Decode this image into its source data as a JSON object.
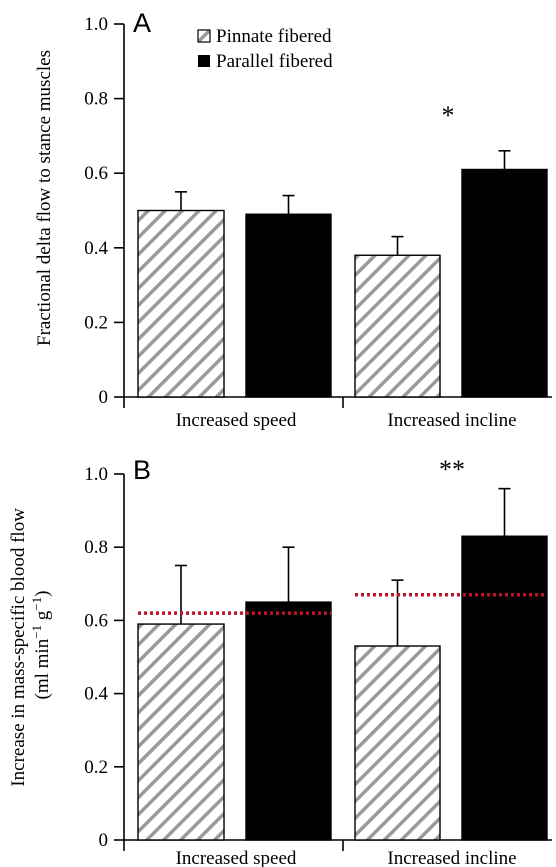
{
  "chart_data": [
    {
      "type": "bar",
      "panel_label": "A",
      "ylabel": "Fractional delta flow to stance muscles",
      "ylabel_lines": [
        "Fractional delta flow to stance muscles"
      ],
      "ylim": [
        0,
        1.0
      ],
      "yticks": [
        0,
        0.2,
        0.4,
        0.6,
        0.8,
        1.0
      ],
      "ytick_labels": [
        "0",
        "0.2",
        "0.4",
        "0.6",
        "0.8",
        "1.0"
      ],
      "categories": [
        "Increased speed",
        "Increased incline"
      ],
      "series": [
        {
          "name": "Pinnate fibered",
          "pattern": "hatched",
          "values": [
            0.5,
            0.38
          ],
          "errors": [
            0.05,
            0.05
          ]
        },
        {
          "name": "Parallel fibered",
          "pattern": "solid",
          "values": [
            0.49,
            0.61
          ],
          "errors": [
            0.05,
            0.05
          ]
        }
      ],
      "legend": {
        "position": "top-center",
        "items": [
          {
            "label": "Pinnate fibered",
            "pattern": "hatched"
          },
          {
            "label": "Parallel fibered",
            "pattern": "solid"
          }
        ]
      },
      "annotations": [
        {
          "text": "*",
          "category_index": 1
        }
      ],
      "reference_lines": [],
      "grid": false
    },
    {
      "type": "bar",
      "panel_label": "B",
      "ylabel": "Increase in mass-specific blood flow (ml min−1 g−1)",
      "ylabel_lines": [
        "Increase in mass-specific blood flow",
        "(ml min−1 g−1)"
      ],
      "ylim": [
        0,
        1.0
      ],
      "yticks": [
        0,
        0.2,
        0.4,
        0.6,
        0.8,
        1.0
      ],
      "ytick_labels": [
        "0",
        "0.2",
        "0.4",
        "0.6",
        "0.8",
        "1.0"
      ],
      "categories": [
        "Increased speed",
        "Increased incline"
      ],
      "series": [
        {
          "name": "Pinnate fibered",
          "pattern": "hatched",
          "values": [
            0.59,
            0.53
          ],
          "errors": [
            0.16,
            0.18
          ]
        },
        {
          "name": "Parallel fibered",
          "pattern": "solid",
          "values": [
            0.65,
            0.83
          ],
          "errors": [
            0.15,
            0.13
          ]
        }
      ],
      "annotations": [
        {
          "text": "**",
          "category_index": 1
        }
      ],
      "reference_lines": [
        {
          "category_index": 0,
          "value": 0.62
        },
        {
          "category_index": 1,
          "value": 0.67
        }
      ],
      "grid": false
    }
  ],
  "colors": {
    "hatch": "#9a9a9a",
    "solid": "#000000",
    "reference_line": "#c0102c",
    "axis": "#000000"
  }
}
